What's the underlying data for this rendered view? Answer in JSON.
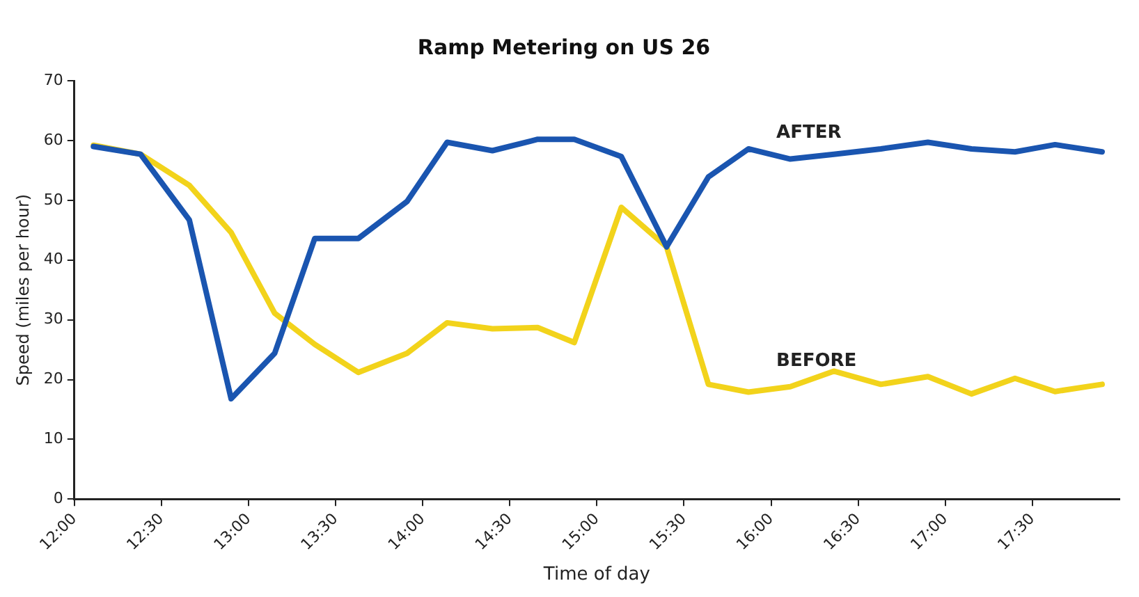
{
  "chart_data": {
    "type": "line",
    "title": "Ramp Metering on US 26",
    "xlabel": "Time of day",
    "ylabel": "Speed (miles per hour)",
    "x": [
      12.11,
      12.38,
      12.66,
      12.9,
      13.15,
      13.38,
      13.63,
      13.91,
      14.14,
      14.4,
      14.66,
      14.87,
      15.14,
      15.4,
      15.64,
      15.87,
      16.11,
      16.36,
      16.63,
      16.9,
      17.15,
      17.4,
      17.63,
      17.9
    ],
    "series": [
      {
        "name": "AFTER",
        "color": "#1a55b0",
        "values": [
          59,
          57.7,
          46.7,
          16.8,
          24.4,
          43.6,
          43.6,
          49.8,
          59.7,
          58.3,
          60.2,
          60.2,
          57.3,
          42.2,
          53.9,
          58.6,
          56.9,
          57.7,
          58.6,
          59.7,
          58.6,
          58.1,
          59.3,
          58.1
        ]
      },
      {
        "name": "BEFORE",
        "color": "#f2d31b",
        "values": [
          59.2,
          57.7,
          52.5,
          44.6,
          31.1,
          25.9,
          21.2,
          24.4,
          29.5,
          28.5,
          28.7,
          26.2,
          48.8,
          42.2,
          19.2,
          17.9,
          18.8,
          21.4,
          19.2,
          20.5,
          17.6,
          20.2,
          18,
          19.2
        ]
      }
    ],
    "xlim": [
      12,
      18
    ],
    "xticks": [
      {
        "value": 12,
        "label": "12:00"
      },
      {
        "value": 12.5,
        "label": "12:30"
      },
      {
        "value": 13,
        "label": "13:00"
      },
      {
        "value": 13.5,
        "label": "13:30"
      },
      {
        "value": 14,
        "label": "14:00"
      },
      {
        "value": 14.5,
        "label": "14:30"
      },
      {
        "value": 15,
        "label": "15:00"
      },
      {
        "value": 15.5,
        "label": "15:30"
      },
      {
        "value": 16,
        "label": "16:00"
      },
      {
        "value": 16.5,
        "label": "16:30"
      },
      {
        "value": 17,
        "label": "17:00"
      },
      {
        "value": 17.5,
        "label": "17:30"
      }
    ],
    "ylim": [
      0,
      70
    ],
    "yticks": [
      0,
      10,
      20,
      30,
      40,
      50,
      60,
      70
    ],
    "grid": false,
    "legend": false,
    "marker": "none",
    "line_style": "solid"
  }
}
